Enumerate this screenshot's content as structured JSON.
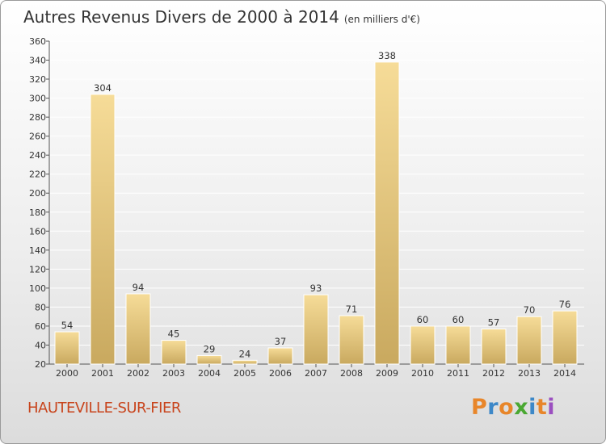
{
  "header": {
    "title": "Autres Revenus Divers de 2000 à 2014",
    "unit": "(en milliers d'€)"
  },
  "footer": {
    "town": "HAUTEVILLE-SUR-FIER",
    "logo_text": "Proxiti"
  },
  "colors": {
    "bar_light": "#f6dc98",
    "bar_dark": "#c9a95f",
    "town": "#c8441c",
    "grid": "#ffffff",
    "logo_letters": [
      "#e8862a",
      "#3d88c8",
      "#e8862a",
      "#4aa832",
      "#3d88c8",
      "#e8862a",
      "#9b4fc0"
    ]
  },
  "chart_data": {
    "type": "bar",
    "title": "Autres Revenus Divers de 2000 à 2014",
    "subtitle": "(en milliers d'€)",
    "categories": [
      "2000",
      "2001",
      "2002",
      "2003",
      "2004",
      "2005",
      "2006",
      "2007",
      "2008",
      "2009",
      "2010",
      "2011",
      "2012",
      "2013",
      "2014"
    ],
    "values": [
      54,
      304,
      94,
      45,
      29,
      24,
      37,
      93,
      71,
      338,
      60,
      60,
      57,
      70,
      76
    ],
    "ylim": [
      20,
      360
    ],
    "yticks": [
      20,
      40,
      60,
      80,
      100,
      120,
      140,
      160,
      180,
      200,
      220,
      240,
      260,
      280,
      300,
      320,
      340,
      360
    ],
    "grid": true,
    "legend": "none"
  }
}
